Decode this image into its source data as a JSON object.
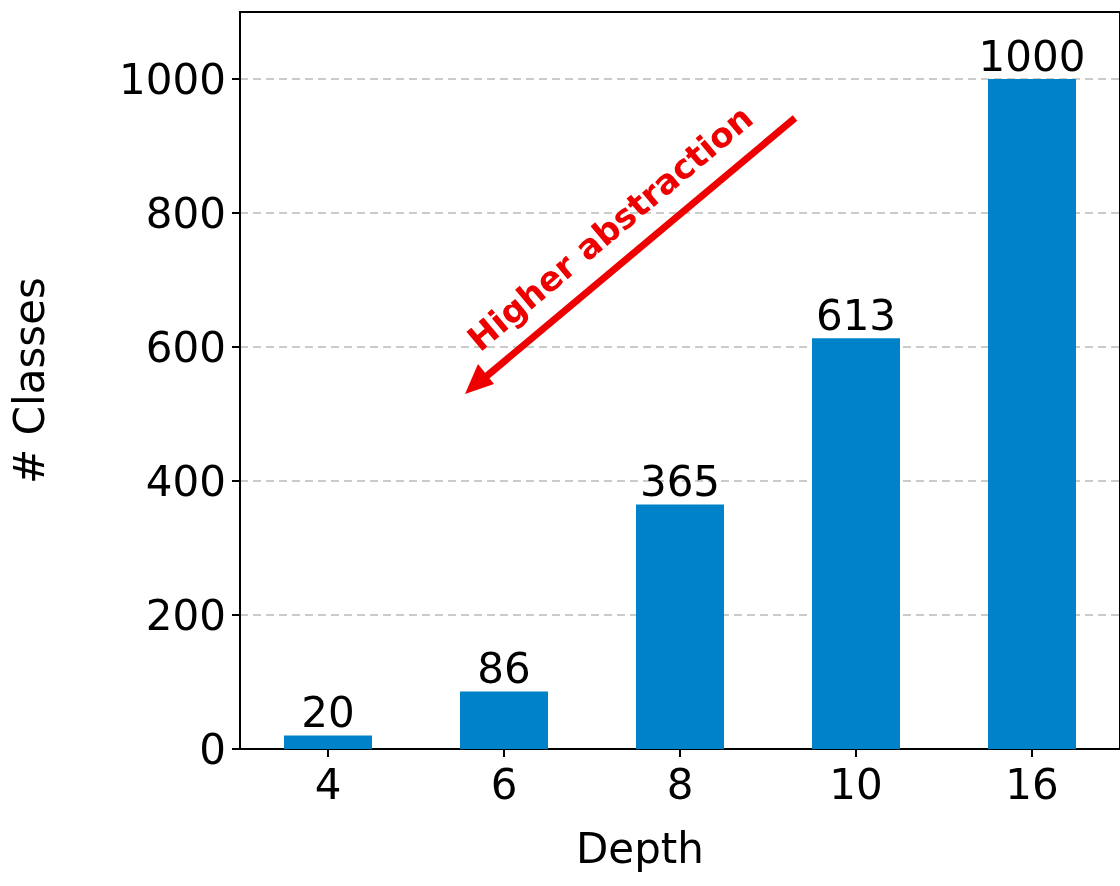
{
  "chart_data": {
    "type": "bar",
    "xlabel": "Depth",
    "ylabel": "# Classes",
    "categories": [
      "4",
      "6",
      "8",
      "10",
      "16"
    ],
    "values": [
      20,
      86,
      365,
      613,
      1000
    ],
    "color": "#0082c8",
    "ylim": [
      0,
      1100
    ],
    "yticks": [
      0,
      200,
      400,
      600,
      800,
      1000
    ],
    "grid": "y",
    "data_labels": true,
    "annotations": [
      "Higher abstraction"
    ]
  }
}
